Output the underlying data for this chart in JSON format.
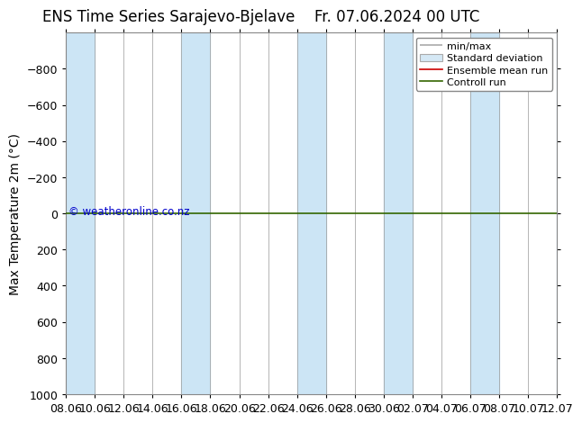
{
  "title_left": "ENS Time Series Sarajevo-Bjelave",
  "title_right": "Fr. 07.06.2024 00 UTC",
  "ylabel": "Max Temperature 2m (°C)",
  "ylim_bottom": 1000,
  "ylim_top": -1000,
  "yticks": [
    -800,
    -600,
    -400,
    -200,
    0,
    200,
    400,
    600,
    800,
    1000
  ],
  "xtick_labels": [
    "08.06",
    "10.06",
    "12.06",
    "14.06",
    "16.06",
    "18.06",
    "20.06",
    "22.06",
    "24.06",
    "26.06",
    "28.06",
    "30.06",
    "02.07",
    "04.07",
    "06.07",
    "08.07",
    "10.07",
    "12.07"
  ],
  "xtick_positions": [
    0,
    2,
    4,
    6,
    8,
    10,
    12,
    14,
    16,
    18,
    20,
    22,
    24,
    26,
    28,
    30,
    32,
    34
  ],
  "shaded_bands": [
    [
      0,
      2
    ],
    [
      8,
      10
    ],
    [
      16,
      18
    ],
    [
      22,
      24
    ],
    [
      28,
      30
    ],
    [
      34,
      36
    ]
  ],
  "shaded_color": "#cce5f5",
  "background_color": "#ffffff",
  "plot_bg_color": "#ffffff",
  "green_line_y": 0,
  "green_line_color": "#336600",
  "copyright_text": "© weatheronline.co.nz",
  "copyright_color": "#0000cc",
  "legend_entries": [
    "min/max",
    "Standard deviation",
    "Ensemble mean run",
    "Controll run"
  ],
  "title_fontsize": 12,
  "axis_label_fontsize": 10,
  "tick_fontsize": 9,
  "legend_fontsize": 8
}
